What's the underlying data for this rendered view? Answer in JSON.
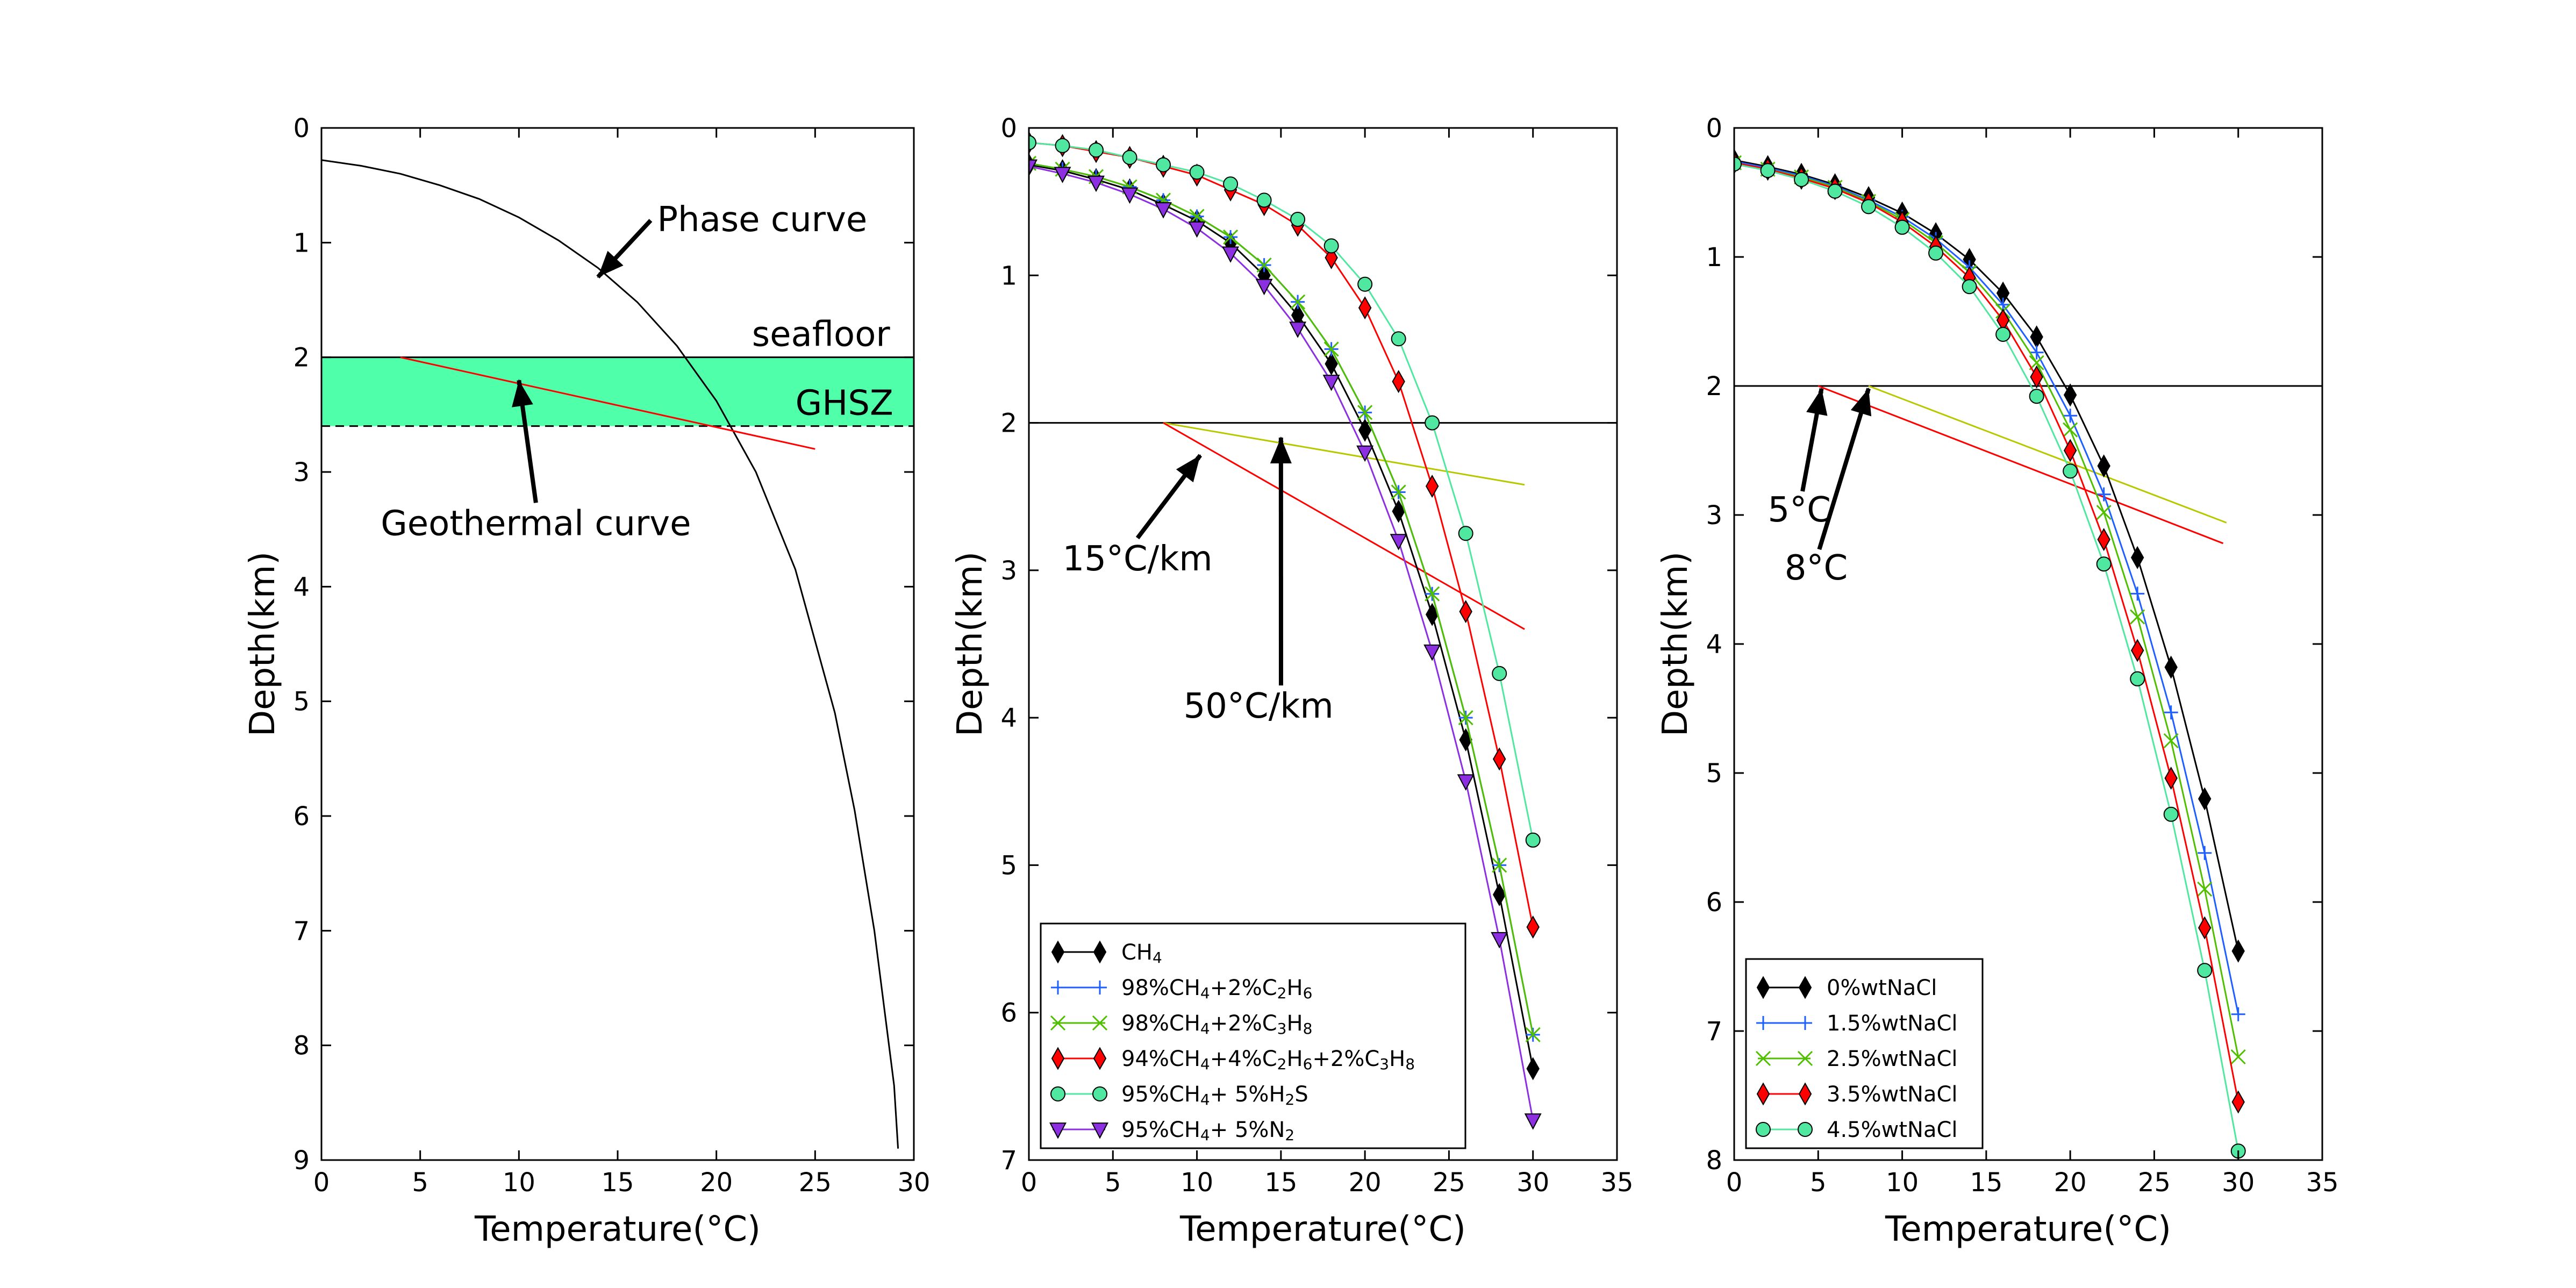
{
  "chart_data": [
    {
      "type": "line",
      "xlabel": "Temperature(°C)",
      "ylabel": "Depth(km)",
      "xlim": [
        0,
        30
      ],
      "ylim": [
        9,
        0
      ],
      "xticks": [
        0,
        5,
        10,
        15,
        20,
        25,
        30
      ],
      "yticks": [
        0,
        1,
        2,
        3,
        4,
        5,
        6,
        7,
        8,
        9
      ],
      "series": [
        {
          "color": "#000000",
          "x": [
            0,
            2,
            4,
            6,
            8,
            10,
            12,
            14,
            16,
            18,
            20,
            22,
            24,
            26,
            27,
            28,
            29,
            29.2
          ],
          "y": [
            0.28,
            0.33,
            0.4,
            0.5,
            0.62,
            0.78,
            0.98,
            1.22,
            1.52,
            1.9,
            2.38,
            3.0,
            3.85,
            5.1,
            5.95,
            7.0,
            8.35,
            8.9
          ]
        },
        {
          "color": "#ff0000",
          "x": [
            4,
            25
          ],
          "y": [
            2.0,
            2.8
          ]
        }
      ],
      "band": {
        "y0": 2.0,
        "y1": 2.6,
        "color": "#50ffaa"
      },
      "hlines": [
        {
          "y": 2.0,
          "style": "solid"
        },
        {
          "y": 2.6,
          "style": "dashed"
        }
      ],
      "annotations": [
        {
          "text": "Phase curve",
          "x": 17,
          "y": 0.9,
          "arrow_to": [
            14,
            1.3
          ]
        },
        {
          "text": "seafloor",
          "x": 21.8,
          "y": 1.9
        },
        {
          "text": "GHSZ",
          "x": 24,
          "y": 2.5
        },
        {
          "text": "Geothermal curve",
          "x": 3,
          "y": 3.55,
          "arrow_to": [
            10,
            2.2
          ]
        }
      ]
    },
    {
      "type": "line",
      "xlabel": "Temperature(°C)",
      "ylabel": "Depth(km)",
      "xlim": [
        0,
        35
      ],
      "ylim": [
        7,
        0
      ],
      "xticks": [
        0,
        5,
        10,
        15,
        20,
        25,
        30,
        35
      ],
      "yticks": [
        0,
        1,
        2,
        3,
        4,
        5,
        6,
        7
      ],
      "x": [
        0,
        2,
        4,
        6,
        8,
        10,
        12,
        14,
        16,
        18,
        20,
        22,
        24,
        26,
        28,
        30
      ],
      "series": [
        {
          "name": "CH4",
          "legend": [
            "CH",
            "4",
            ""
          ],
          "color": "#000000",
          "marker": "diamond",
          "values": [
            0.25,
            0.29,
            0.35,
            0.42,
            0.52,
            0.63,
            0.78,
            1.0,
            1.27,
            1.6,
            2.05,
            2.6,
            3.3,
            4.15,
            5.2,
            6.38
          ]
        },
        {
          "name": "98%CH4+2%C2H6",
          "legend": [
            "98%CH",
            "4",
            "+2%C",
            "2",
            "H",
            "6",
            ""
          ],
          "color": "#1f5fff",
          "marker": "plus",
          "values": [
            0.24,
            0.28,
            0.33,
            0.4,
            0.49,
            0.6,
            0.74,
            0.93,
            1.18,
            1.5,
            1.93,
            2.47,
            3.16,
            4.0,
            5.0,
            6.15
          ]
        },
        {
          "name": "98%CH4+2%C3H8",
          "legend": [
            "98%CH",
            "4",
            "+2%C",
            "3",
            "H",
            "8",
            ""
          ],
          "color": "#4fbf00",
          "marker": "x",
          "values": [
            0.24,
            0.28,
            0.33,
            0.4,
            0.49,
            0.6,
            0.74,
            0.93,
            1.18,
            1.5,
            1.93,
            2.47,
            3.16,
            4.0,
            5.0,
            6.15
          ]
        },
        {
          "name": "94%CH4+4%C2H6+2%C3H8",
          "legend": [
            "94%CH",
            "4",
            "+4%C",
            "2",
            "H",
            "6",
            "+2%C",
            "3",
            "H",
            "8",
            ""
          ],
          "color": "#ff0000",
          "marker": "diamond",
          "values": [
            0.1,
            0.12,
            0.16,
            0.2,
            0.26,
            0.32,
            0.42,
            0.52,
            0.66,
            0.88,
            1.22,
            1.72,
            2.43,
            3.28,
            4.28,
            5.42
          ]
        },
        {
          "name": "95%CH4+ 5%H2S",
          "legend": [
            "95%CH",
            "4",
            "+ 5%H",
            "2",
            "S"
          ],
          "color": "#50e8a0",
          "marker": "circle",
          "values": [
            0.1,
            0.12,
            0.15,
            0.2,
            0.25,
            0.3,
            0.38,
            0.49,
            0.62,
            0.8,
            1.06,
            1.43,
            2.0,
            2.75,
            3.7,
            4.83
          ]
        },
        {
          "name": "95%CH4+ 5%N2",
          "legend": [
            "95%CH",
            "4",
            "+ 5%N",
            "2",
            ""
          ],
          "color": "#8c2fe0",
          "marker": "triangle",
          "values": [
            0.26,
            0.31,
            0.37,
            0.45,
            0.55,
            0.68,
            0.85,
            1.07,
            1.36,
            1.72,
            2.2,
            2.8,
            3.55,
            4.43,
            5.5,
            6.73
          ]
        }
      ],
      "lines": [
        {
          "color": "#000000",
          "x": [
            0,
            35
          ],
          "y": [
            2.0,
            2.0
          ]
        },
        {
          "color": "#b8c800",
          "x": [
            8,
            29.5
          ],
          "y": [
            2.0,
            2.42
          ]
        },
        {
          "color": "#ff0000",
          "x": [
            8,
            29.5
          ],
          "y": [
            2.0,
            3.4
          ]
        }
      ],
      "annotations": [
        {
          "text": "15°C/km",
          "x": 2,
          "y": 3.0,
          "arrow_to": [
            10.2,
            2.22
          ]
        },
        {
          "text": "50°C/km",
          "x": 9.2,
          "y": 4.0,
          "arrow_to": [
            15,
            2.1
          ]
        }
      ],
      "legend_position": "lower-left"
    },
    {
      "type": "line",
      "xlabel": "Temperature(°C)",
      "ylabel": "Depth(km)",
      "xlim": [
        0,
        35
      ],
      "ylim": [
        8,
        0
      ],
      "xticks": [
        0,
        5,
        10,
        15,
        20,
        25,
        30,
        35
      ],
      "yticks": [
        0,
        1,
        2,
        3,
        4,
        5,
        6,
        7,
        8
      ],
      "x": [
        0,
        2,
        4,
        6,
        8,
        10,
        12,
        14,
        16,
        18,
        20,
        22,
        24,
        26,
        28,
        30
      ],
      "series": [
        {
          "name": "0%wtNaCl",
          "color": "#000000",
          "marker": "diamond",
          "values": [
            0.25,
            0.3,
            0.36,
            0.44,
            0.54,
            0.66,
            0.82,
            1.02,
            1.28,
            1.62,
            2.07,
            2.62,
            3.33,
            4.18,
            5.2,
            6.38
          ]
        },
        {
          "name": "1.5%wtNaCl",
          "color": "#1f5fff",
          "marker": "plus",
          "values": [
            0.26,
            0.31,
            0.37,
            0.45,
            0.56,
            0.69,
            0.86,
            1.08,
            1.37,
            1.74,
            2.23,
            2.84,
            3.61,
            4.53,
            5.62,
            6.87
          ]
        },
        {
          "name": "2.5%wtNaCl",
          "color": "#4fbf00",
          "marker": "x",
          "values": [
            0.27,
            0.32,
            0.38,
            0.46,
            0.57,
            0.71,
            0.89,
            1.12,
            1.42,
            1.82,
            2.34,
            2.98,
            3.79,
            4.75,
            5.9,
            7.2
          ]
        },
        {
          "name": "3.5%wtNaCl",
          "color": "#ff0000",
          "marker": "diamond",
          "values": [
            0.27,
            0.32,
            0.39,
            0.47,
            0.58,
            0.73,
            0.92,
            1.16,
            1.49,
            1.93,
            2.5,
            3.19,
            4.05,
            5.04,
            6.2,
            7.55
          ]
        },
        {
          "name": "4.5%wtNaCl",
          "color": "#50e8a0",
          "marker": "circle",
          "values": [
            0.28,
            0.33,
            0.4,
            0.49,
            0.61,
            0.77,
            0.97,
            1.23,
            1.6,
            2.08,
            2.66,
            3.38,
            4.27,
            5.32,
            6.53,
            7.93
          ]
        }
      ],
      "lines": [
        {
          "color": "#000000",
          "x": [
            0,
            35
          ],
          "y": [
            2.0,
            2.0
          ]
        },
        {
          "color": "#b8c800",
          "x": [
            8,
            29.3
          ],
          "y": [
            2.0,
            3.06
          ]
        },
        {
          "color": "#ff0000",
          "x": [
            5,
            29.1
          ],
          "y": [
            2.0,
            3.22
          ]
        }
      ],
      "annotations": [
        {
          "text": "5°C",
          "x": 2,
          "y": 3.05,
          "arrow_to": [
            5.2,
            2.02
          ]
        },
        {
          "text": "8°C",
          "x": 3,
          "y": 3.5,
          "arrow_to": [
            8,
            2.02
          ]
        }
      ],
      "legend_position": "lower-left"
    }
  ]
}
